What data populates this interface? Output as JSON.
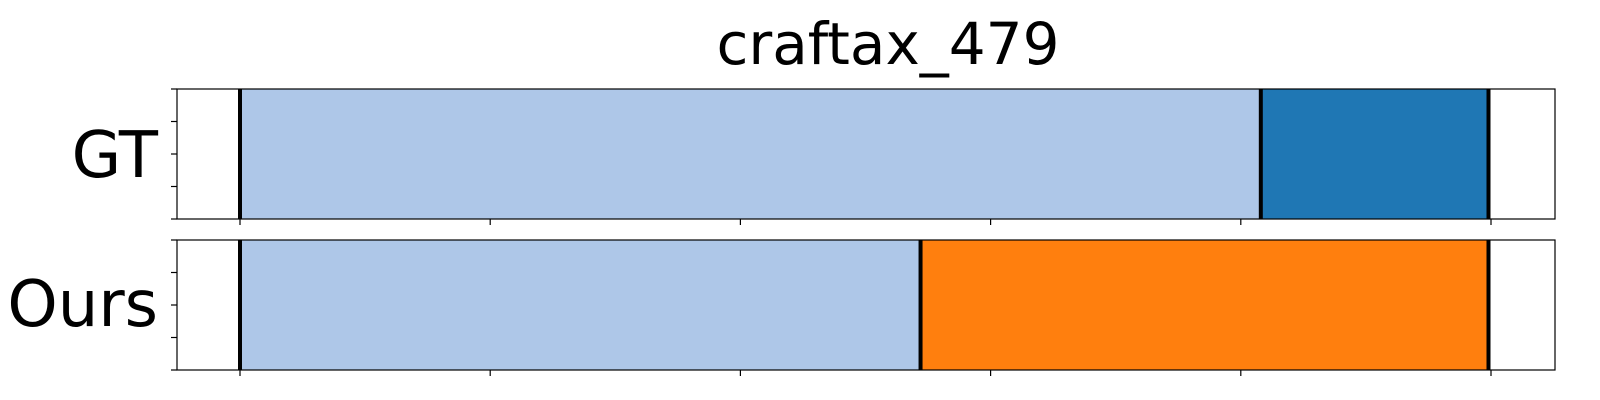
{
  "chart_data": {
    "type": "bar",
    "title": "craftax_479",
    "xlim": [
      0,
      100
    ],
    "xticks": [
      5,
      25,
      45,
      65,
      85,
      105
    ],
    "yticks_per_row": 5,
    "rows": [
      {
        "label": "GT",
        "segments": [
          {
            "start": 5,
            "end": 86.6,
            "color": "#aec7e8"
          },
          {
            "start": 86.6,
            "end": 104.8,
            "color": "#1f77b4"
          }
        ],
        "boundaries": [
          5,
          86.6,
          104.8
        ]
      },
      {
        "label": "Ours",
        "segments": [
          {
            "start": 5,
            "end": 59.4,
            "color": "#aec7e8"
          },
          {
            "start": 59.4,
            "end": 104.8,
            "color": "#ff7f0e"
          }
        ],
        "boundaries": [
          5,
          59.4,
          104.8
        ]
      }
    ]
  }
}
